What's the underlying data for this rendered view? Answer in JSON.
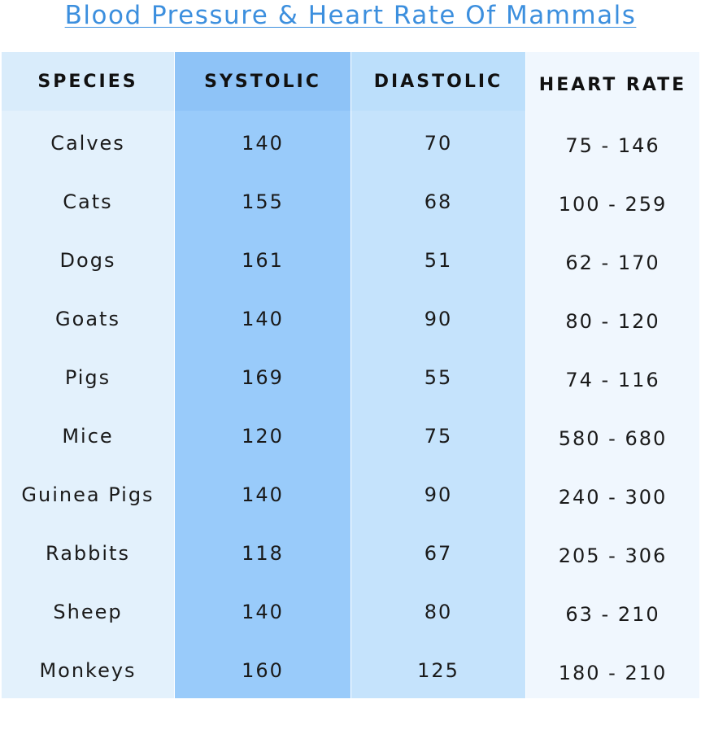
{
  "title": "Blood Pressure & Heart Rate Of Mammals",
  "columns": [
    "SPECIES",
    "SYSTOLIC",
    "DIASTOLIC",
    "HEART RATE"
  ],
  "rows": [
    {
      "species": "Calves",
      "systolic": "140",
      "diastolic": "70",
      "heart_rate": "75 - 146"
    },
    {
      "species": "Cats",
      "systolic": "155",
      "diastolic": "68",
      "heart_rate": "100 - 259"
    },
    {
      "species": "Dogs",
      "systolic": "161",
      "diastolic": "51",
      "heart_rate": "62 - 170"
    },
    {
      "species": "Goats",
      "systolic": "140",
      "diastolic": "90",
      "heart_rate": "80 - 120"
    },
    {
      "species": "Pigs",
      "systolic": "169",
      "diastolic": "55",
      "heart_rate": "74 - 116"
    },
    {
      "species": "Mice",
      "systolic": "120",
      "diastolic": "75",
      "heart_rate": "580 - 680"
    },
    {
      "species": "Guinea Pigs",
      "systolic": "140",
      "diastolic": "90",
      "heart_rate": "240 - 300"
    },
    {
      "species": "Rabbits",
      "systolic": "118",
      "diastolic": "67",
      "heart_rate": "205 - 306"
    },
    {
      "species": "Sheep",
      "systolic": "140",
      "diastolic": "80",
      "heart_rate": "63 - 210"
    },
    {
      "species": "Monkeys",
      "systolic": "160",
      "diastolic": "125",
      "heart_rate": "180 - 210"
    }
  ],
  "colors": {
    "title": "#3c8fde",
    "species_column": "#e3f1fc",
    "systolic_column": "#99cbfa",
    "diastolic_column": "#c5e3fc",
    "heart_rate_column": "#f0f7fe"
  }
}
